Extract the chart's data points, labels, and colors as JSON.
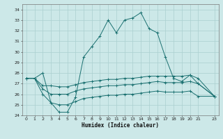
{
  "xlabel": "Humidex (Indice chaleur)",
  "bg_color": "#cce8e8",
  "grid_color": "#aacfcf",
  "line_color": "#1a7070",
  "x_main": [
    0,
    1,
    2,
    3,
    4,
    5,
    6,
    7,
    8,
    9,
    10,
    11,
    12,
    13,
    14,
    15,
    16,
    17,
    18,
    19,
    20,
    21,
    23
  ],
  "main_line": [
    27.5,
    27.5,
    28.0,
    25.2,
    24.3,
    24.3,
    25.7,
    29.5,
    30.5,
    31.5,
    33.0,
    31.8,
    33.0,
    33.2,
    33.7,
    32.2,
    31.8,
    29.5,
    27.5,
    27.2,
    27.8,
    27.0,
    25.8
  ],
  "x_flat": [
    0,
    1,
    2,
    3,
    4,
    5,
    6,
    7,
    8,
    9,
    10,
    11,
    12,
    13,
    14,
    15,
    16,
    17,
    18,
    19,
    20,
    21,
    23
  ],
  "line_upper": [
    27.5,
    27.5,
    26.8,
    26.8,
    26.7,
    26.7,
    26.9,
    27.1,
    27.2,
    27.3,
    27.4,
    27.4,
    27.5,
    27.5,
    27.6,
    27.7,
    27.7,
    27.7,
    27.7,
    27.7,
    27.8,
    27.5,
    25.8
  ],
  "line_mid": [
    27.5,
    27.5,
    26.5,
    26.0,
    26.0,
    26.0,
    26.3,
    26.5,
    26.6,
    26.7,
    26.8,
    26.8,
    26.9,
    26.9,
    27.0,
    27.1,
    27.2,
    27.1,
    27.1,
    27.1,
    27.2,
    27.0,
    25.8
  ],
  "line_lower": [
    27.5,
    27.5,
    26.0,
    25.2,
    25.0,
    25.0,
    25.3,
    25.6,
    25.7,
    25.8,
    25.9,
    25.9,
    26.0,
    26.0,
    26.1,
    26.2,
    26.3,
    26.2,
    26.2,
    26.2,
    26.3,
    25.8,
    25.8
  ],
  "xlim": [
    -0.5,
    23.5
  ],
  "ylim": [
    24,
    34.5
  ],
  "yticks": [
    24,
    25,
    26,
    27,
    28,
    29,
    30,
    31,
    32,
    33,
    34
  ],
  "xtick_positions": [
    0,
    1,
    2,
    3,
    4,
    5,
    6,
    7,
    8,
    9,
    10,
    11,
    12,
    13,
    14,
    15,
    16,
    17,
    18,
    19,
    20,
    21,
    23
  ],
  "xtick_labels": [
    "0",
    "1",
    "2",
    "3",
    "4",
    "5",
    "6",
    "7",
    "8",
    "9",
    "10",
    "11",
    "12",
    "13",
    "14",
    "15",
    "16",
    "17",
    "18",
    "19",
    "20",
    "21",
    "23"
  ]
}
